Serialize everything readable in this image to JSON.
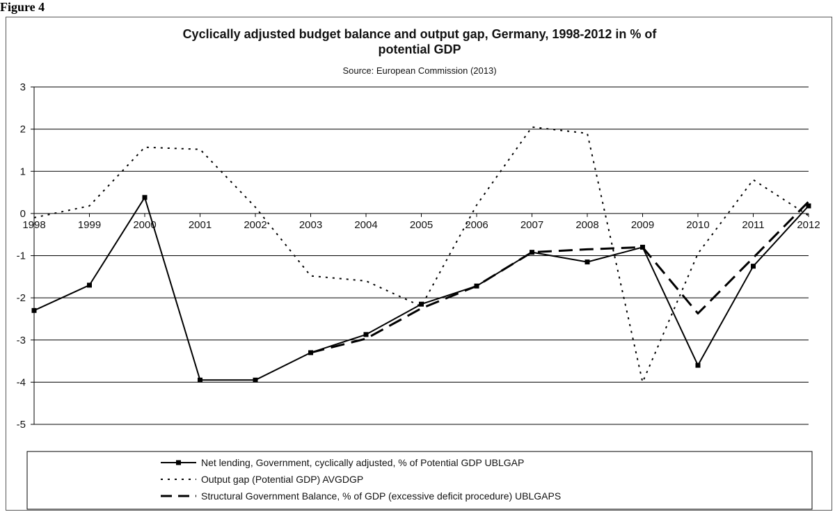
{
  "figure_label": "Figure 4",
  "chart_data": {
    "type": "line",
    "title": "Cyclically adjusted budget balance and output gap, Germany, 1998-2012 in % of potential GDP",
    "title_lines": [
      "Cyclically adjusted budget balance and output gap, Germany, 1998-2012 in % of",
      "potential GDP"
    ],
    "subtitle": "Source: European Commission (2013)",
    "xlabel": "",
    "ylabel": "",
    "x": [
      "1998",
      "1999",
      "2000",
      "2001",
      "2002",
      "2003",
      "2004",
      "2005",
      "2006",
      "2007",
      "2008",
      "2009",
      "2010",
      "2011",
      "2012"
    ],
    "ylim": [
      -5,
      3
    ],
    "yticks": [
      "3",
      "2",
      "1",
      "0",
      "-1",
      "-2",
      "-3",
      "-4",
      "-5"
    ],
    "grid": true,
    "legend_position": "bottom",
    "series": [
      {
        "name": "Net lending, Government, cyclically adjusted, % of Potential GDP UBLGAP",
        "style": "solid-markers",
        "color": "#000000",
        "values": [
          -2.3,
          -1.7,
          0.38,
          -3.95,
          -3.95,
          -3.3,
          -2.87,
          -2.15,
          -1.72,
          -0.92,
          -1.15,
          -0.8,
          -3.6,
          -1.25,
          0.18
        ]
      },
      {
        "name": "Output gap (Potential GDP) AVGDGP",
        "style": "dotted",
        "color": "#000000",
        "values": [
          -0.1,
          0.18,
          1.57,
          1.52,
          0.15,
          -1.48,
          -1.6,
          -2.2,
          0.2,
          2.05,
          1.9,
          -4.0,
          -0.95,
          0.8,
          -0.05
        ]
      },
      {
        "name": "Structural Government Balance, % of GDP (excessive deficit procedure) UBLGAPS",
        "style": "long-dash",
        "color": "#000000",
        "values": [
          null,
          null,
          null,
          null,
          null,
          -3.3,
          -2.97,
          -2.25,
          -1.72,
          -0.92,
          -0.85,
          -0.8,
          -2.37,
          -1.05,
          0.28
        ]
      }
    ]
  }
}
